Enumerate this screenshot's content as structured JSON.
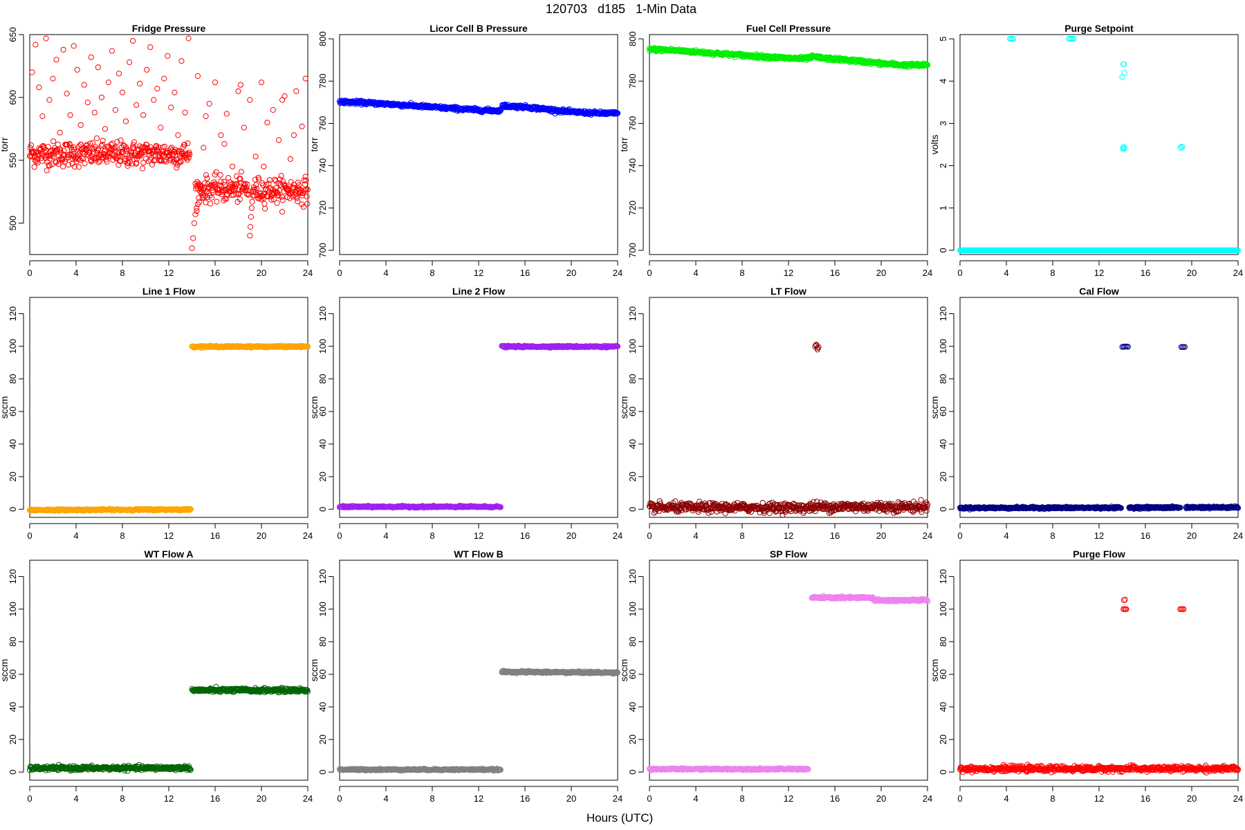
{
  "figure": {
    "title": "120703   d185   1-Min Data",
    "xlabel": "Hours (UTC)"
  },
  "chart_data": [
    {
      "type": "scatter",
      "title": "Fridge Pressure",
      "ylabel": "torr",
      "xlim": [
        0,
        24
      ],
      "ylim": [
        475,
        650
      ],
      "xticks": [
        0,
        4,
        8,
        12,
        16,
        20,
        24
      ],
      "yticks": [
        500,
        550,
        600,
        650
      ],
      "color": "#ff0000",
      "marker": "open-circle",
      "series": [
        {
          "x": [
            0,
            13.8
          ],
          "y": [
            555,
            555
          ],
          "noise": 5
        },
        {
          "x": [
            14.3,
            18.9
          ],
          "y": [
            527,
            527
          ],
          "noise": 5
        },
        {
          "x": [
            19.3,
            24
          ],
          "y": [
            526,
            526
          ],
          "noise": 5
        },
        {
          "x": [
            14.0,
            14.1,
            14.2,
            14.3,
            14.4,
            14.5,
            14.6,
            14.8,
            15.0
          ],
          "y": [
            480,
            488,
            500,
            507,
            512,
            515,
            520,
            524,
            527
          ]
        },
        {
          "x": [
            19.0,
            19.05,
            19.1,
            19.15,
            19.2,
            19.25,
            19.3
          ],
          "y": [
            490,
            497,
            505,
            512,
            517,
            522,
            525
          ]
        },
        {
          "x": [
            0.2,
            0.5,
            0.8,
            1.1,
            1.4,
            1.7,
            2.0,
            2.3,
            2.6,
            2.9,
            3.2,
            3.5,
            3.8,
            4.1,
            4.4,
            4.7,
            5.0,
            5.3,
            5.6,
            5.9,
            6.2,
            6.5,
            6.8,
            7.1,
            7.4,
            7.7,
            8.0,
            8.3,
            8.6,
            8.9,
            9.2,
            9.5,
            9.8,
            10.1,
            10.4,
            10.7,
            11.0,
            11.3,
            11.6,
            11.9,
            12.2,
            12.5,
            12.8,
            13.1,
            13.4,
            13.7
          ],
          "y": [
            620,
            642,
            608,
            585,
            647,
            598,
            615,
            630,
            572,
            638,
            603,
            586,
            641,
            622,
            578,
            610,
            596,
            632,
            588,
            624,
            600,
            575,
            612,
            637,
            590,
            619,
            604,
            581,
            628,
            645,
            594,
            611,
            586,
            622,
            640,
            598,
            607,
            576,
            615,
            633,
            592,
            604,
            570,
            629,
            588,
            647
          ]
        },
        {
          "x": [
            14.5,
            15.0,
            15.5,
            16.0,
            16.5,
            17.0,
            17.5,
            18.0,
            18.5,
            19.0,
            19.5,
            20.0,
            20.5,
            21.0,
            21.5,
            22.0,
            22.5,
            23.0,
            23.5,
            23.8,
            15.2,
            16.8,
            18.2,
            20.2,
            21.8,
            22.8
          ],
          "y": [
            617,
            560,
            595,
            612,
            570,
            587,
            545,
            605,
            576,
            598,
            553,
            612,
            580,
            590,
            566,
            601,
            551,
            605,
            577,
            615,
            585,
            563,
            610,
            545,
            598,
            570
          ]
        }
      ]
    },
    {
      "type": "scatter",
      "title": "Licor Cell B Pressure",
      "ylabel": "torr",
      "xlim": [
        0,
        24
      ],
      "ylim": [
        698,
        802
      ],
      "xticks": [
        0,
        4,
        8,
        12,
        16,
        20,
        24
      ],
      "yticks": [
        700,
        720,
        740,
        760,
        780,
        800
      ],
      "color": "#0000ff",
      "marker": "open-circle",
      "series": [
        {
          "x": [
            0,
            2,
            4,
            6,
            8,
            10,
            12,
            13.9
          ],
          "y": [
            770.2,
            769.8,
            769.2,
            768.5,
            767.7,
            767.0,
            766.3,
            766.0
          ],
          "noise": 0.4
        },
        {
          "x": [
            14.0,
            16,
            18,
            20,
            22,
            24
          ],
          "y": [
            768.3,
            767.8,
            766.6,
            765.4,
            764.9,
            764.7
          ],
          "noise": 0.4
        }
      ]
    },
    {
      "type": "scatter",
      "title": "Fuel Cell Pressure",
      "ylabel": "torr",
      "xlim": [
        0,
        24
      ],
      "ylim": [
        698,
        802
      ],
      "xticks": [
        0,
        4,
        8,
        12,
        16,
        20,
        24
      ],
      "yticks": [
        700,
        720,
        740,
        760,
        780,
        800
      ],
      "color": "#00ee00",
      "marker": "open-circle",
      "series": [
        {
          "x": [
            0,
            2,
            4,
            6,
            8,
            10,
            12,
            13.5,
            14.2,
            15,
            16,
            18,
            20,
            22,
            24
          ],
          "y": [
            795,
            794.6,
            793.8,
            793,
            792.2,
            791.5,
            790.8,
            790.6,
            791.5,
            790.8,
            790.4,
            789.5,
            788.3,
            787.6,
            787.5
          ],
          "noise": 0.4
        }
      ]
    },
    {
      "type": "scatter",
      "title": "Purge Setpoint",
      "ylabel": "volts",
      "xlim": [
        0,
        24
      ],
      "ylim": [
        -0.1,
        5.1
      ],
      "xticks": [
        0,
        4,
        8,
        12,
        16,
        20,
        24
      ],
      "yticks": [
        0,
        1,
        2,
        3,
        4,
        5
      ],
      "color": "#00ffff",
      "marker": "open-circle",
      "series": [
        {
          "x": [
            0,
            24
          ],
          "y": [
            0,
            0
          ],
          "noise": 0
        },
        {
          "x": [
            4.3,
            4.4,
            4.5,
            4.6
          ],
          "y": [
            5,
            5,
            5,
            5
          ]
        },
        {
          "x": [
            9.4,
            9.5,
            9.6,
            9.7,
            9.8
          ],
          "y": [
            5,
            5,
            5,
            5,
            5
          ]
        },
        {
          "x": [
            14.0,
            14.1,
            14.15,
            14.2,
            14.05,
            14.1,
            14.15,
            14.2
          ],
          "y": [
            4.1,
            4.4,
            4.4,
            4.2,
            2.4,
            2.45,
            2.4,
            2.42
          ]
        },
        {
          "x": [
            19.0,
            19.1,
            19.2
          ],
          "y": [
            2.42,
            2.45,
            2.44
          ]
        }
      ]
    },
    {
      "type": "scatter",
      "title": "Line 1 Flow",
      "ylabel": "sccm",
      "xlim": [
        0,
        24
      ],
      "ylim": [
        -5,
        130
      ],
      "xticks": [
        0,
        4,
        8,
        12,
        16,
        20,
        24
      ],
      "yticks": [
        0,
        20,
        40,
        60,
        80,
        100,
        120
      ],
      "color": "#ffa500",
      "marker": "open-circle",
      "series": [
        {
          "x": [
            0,
            13.9
          ],
          "y": [
            -0.5,
            -0.2
          ],
          "noise": 0.25
        },
        {
          "x": [
            14.0,
            24
          ],
          "y": [
            99.8,
            99.8
          ],
          "noise": 0.25
        }
      ]
    },
    {
      "type": "scatter",
      "title": "Line 2 Flow",
      "ylabel": "sccm",
      "xlim": [
        0,
        24
      ],
      "ylim": [
        -5,
        130
      ],
      "xticks": [
        0,
        4,
        8,
        12,
        16,
        20,
        24
      ],
      "yticks": [
        0,
        20,
        40,
        60,
        80,
        100,
        120
      ],
      "color": "#a020f0",
      "marker": "open-circle",
      "series": [
        {
          "x": [
            0,
            13.9
          ],
          "y": [
            1.5,
            1.5
          ],
          "noise": 0.25
        },
        {
          "x": [
            14.0,
            24
          ],
          "y": [
            99.8,
            99.8
          ],
          "noise": 0.25
        }
      ]
    },
    {
      "type": "scatter",
      "title": "LT Flow",
      "ylabel": "sccm",
      "xlim": [
        0,
        24
      ],
      "ylim": [
        -5,
        130
      ],
      "xticks": [
        0,
        4,
        8,
        12,
        16,
        20,
        24
      ],
      "yticks": [
        0,
        20,
        40,
        60,
        80,
        100,
        120
      ],
      "color": "#8b0000",
      "marker": "open-circle",
      "series": [
        {
          "x": [
            0,
            14.0
          ],
          "y": [
            1.0,
            1.0
          ],
          "noise": 1.4
        },
        {
          "x": [
            14.0,
            24
          ],
          "y": [
            1.5,
            1.5
          ],
          "noise": 1.5
        },
        {
          "x": [
            14.3,
            14.4,
            14.5,
            14.6,
            14.4,
            14.5
          ],
          "y": [
            100,
            101,
            98,
            99.5,
            100.5,
            99
          ]
        }
      ]
    },
    {
      "type": "scatter",
      "title": "Cal Flow",
      "ylabel": "sccm",
      "xlim": [
        0,
        24
      ],
      "ylim": [
        -5,
        130
      ],
      "xticks": [
        0,
        4,
        8,
        12,
        16,
        20,
        24
      ],
      "yticks": [
        0,
        20,
        40,
        60,
        80,
        100,
        120
      ],
      "color": "#000080",
      "marker": "open-circle",
      "series": [
        {
          "x": [
            0,
            13.9
          ],
          "y": [
            0.8,
            0.9
          ],
          "noise": 0.3
        },
        {
          "x": [
            14.6,
            19.0
          ],
          "y": [
            1.0,
            1.0
          ],
          "noise": 0.3
        },
        {
          "x": [
            19.5,
            24
          ],
          "y": [
            1.1,
            1.1
          ],
          "noise": 0.3
        },
        {
          "x": [
            14.0,
            14.1,
            14.2,
            14.3,
            14.4,
            14.5,
            19.1,
            19.2,
            19.3,
            19.4
          ],
          "y": [
            99.6,
            99.8,
            99.7,
            99.9,
            99.8,
            99.7,
            99.5,
            99.6,
            99.5,
            99.6
          ]
        }
      ]
    },
    {
      "type": "scatter",
      "title": "WT Flow A",
      "ylabel": "sccm",
      "xlim": [
        0,
        24
      ],
      "ylim": [
        -5,
        130
      ],
      "xticks": [
        0,
        4,
        8,
        12,
        16,
        20,
        24
      ],
      "yticks": [
        0,
        20,
        40,
        60,
        80,
        100,
        120
      ],
      "color": "#006400",
      "marker": "open-circle",
      "series": [
        {
          "x": [
            0,
            13.9
          ],
          "y": [
            2.3,
            2.5
          ],
          "noise": 0.6
        },
        {
          "x": [
            14.0,
            24
          ],
          "y": [
            50.2,
            50.2
          ],
          "noise": 0.6
        }
      ]
    },
    {
      "type": "scatter",
      "title": "WT Flow B",
      "ylabel": "sccm",
      "xlim": [
        0,
        24
      ],
      "ylim": [
        -5,
        130
      ],
      "xticks": [
        0,
        4,
        8,
        12,
        16,
        20,
        24
      ],
      "yticks": [
        0,
        20,
        40,
        60,
        80,
        100,
        120
      ],
      "color": "#808080",
      "marker": "open-circle",
      "series": [
        {
          "x": [
            0,
            13.9
          ],
          "y": [
            1.5,
            1.5
          ],
          "noise": 0.25
        },
        {
          "x": [
            14.0,
            24
          ],
          "y": [
            61.5,
            61.0
          ],
          "noise": 0.3
        }
      ]
    },
    {
      "type": "scatter",
      "title": "SP Flow",
      "ylabel": "sccm",
      "xlim": [
        0,
        24
      ],
      "ylim": [
        -5,
        130
      ],
      "xticks": [
        0,
        4,
        8,
        12,
        16,
        20,
        24
      ],
      "yticks": [
        0,
        20,
        40,
        60,
        80,
        100,
        120
      ],
      "color": "#ee82ee",
      "marker": "open-circle",
      "series": [
        {
          "x": [
            0,
            13.7
          ],
          "y": [
            1.8,
            1.8
          ],
          "noise": 0.25
        },
        {
          "x": [
            14.0,
            19.3
          ],
          "y": [
            107,
            107
          ],
          "noise": 0.35
        },
        {
          "x": [
            19.5,
            24
          ],
          "y": [
            105.3,
            105.5
          ],
          "noise": 0.35
        },
        {
          "x": [
            19.3,
            19.4
          ],
          "y": [
            106,
            105
          ]
        }
      ]
    },
    {
      "type": "scatter",
      "title": "Purge Flow",
      "ylabel": "sccm",
      "xlim": [
        0,
        24
      ],
      "ylim": [
        -5,
        130
      ],
      "xticks": [
        0,
        4,
        8,
        12,
        16,
        20,
        24
      ],
      "yticks": [
        0,
        20,
        40,
        60,
        80,
        100,
        120
      ],
      "color": "#ff0000",
      "marker": "open-circle",
      "series": [
        {
          "x": [
            0,
            24
          ],
          "y": [
            2.0,
            2.0
          ],
          "noise": 0.8
        },
        {
          "x": [
            14.1,
            14.2,
            14.3,
            14.35,
            14.15,
            14.25,
            19.0,
            19.1,
            19.2,
            19.3
          ],
          "y": [
            100,
            100,
            100,
            100,
            105.5,
            105.8,
            100,
            100,
            100,
            100
          ]
        }
      ]
    }
  ]
}
